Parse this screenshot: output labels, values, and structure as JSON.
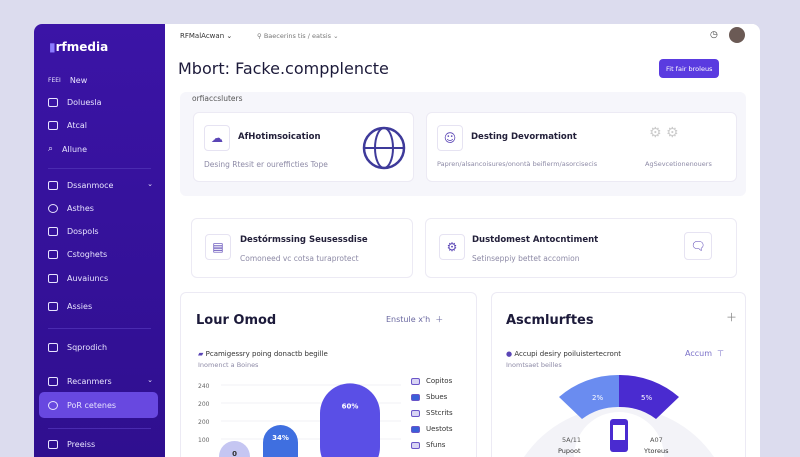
{
  "brand": "rfmedia",
  "sidebar": {
    "items": [
      {
        "label": "New",
        "prefix": "FEEI"
      },
      {
        "label": "Doluesla"
      },
      {
        "label": "Atcal"
      },
      {
        "label": "Allune"
      },
      {
        "label": "Dssanmoce",
        "chevron": true
      },
      {
        "label": "Asthes"
      },
      {
        "label": "Dospols"
      },
      {
        "label": "Cstoghets"
      },
      {
        "label": "Auvaiuncs"
      },
      {
        "label": "Assies"
      },
      {
        "label": "Sqprodich"
      },
      {
        "label": "Recanmers",
        "chevron": true
      },
      {
        "label": "PoR cetenes",
        "active": true
      },
      {
        "label": "Preeiss"
      }
    ]
  },
  "topbar": {
    "workspace": "RFMalAcwan",
    "breadcrumb": "Baecerins tis / eatsis"
  },
  "page": {
    "title": "Mbort: Facke.compplencte",
    "action": "Fit fair broleus"
  },
  "section": {
    "label": "orfiaccsluters",
    "cards": [
      {
        "title": "AfHotimsoication",
        "desc": "Desing Rtesit er ourefficties Tope"
      },
      {
        "title": "Desting Devormationt",
        "desc": "Papren/alsancoisures/onontà beifierm/asorcisecis",
        "side": "AgSevcetionenouers"
      }
    ]
  },
  "cards2": [
    {
      "title": "Destórmssing Seusessdise",
      "desc": "Comoneed vc cotsa turaprotect"
    },
    {
      "title": "Dustdomest Antocntiment",
      "desc": "Setinseppiy bettet accomion"
    }
  ],
  "left_panel": {
    "title": "Lour Omod",
    "action": "Enstule x'h",
    "subtitle": "Pcamigessry poing donactb begille",
    "caption": "Inomenct a Boines",
    "chart_data": {
      "type": "bar",
      "yticks": [
        "240",
        "200",
        "200",
        "100"
      ],
      "bars": [
        {
          "label": "0",
          "value": 50,
          "color": "#c5c6f2"
        },
        {
          "label": "34%",
          "value": 100,
          "color": "#3f6fe0"
        },
        {
          "label": "60%",
          "value": 230,
          "color": "#5a4fe6"
        }
      ],
      "ylim": [
        0,
        250
      ],
      "legend": [
        "Copitos",
        "Sbues",
        "SStcrits",
        "Uestots",
        "Sfuns"
      ]
    }
  },
  "right_panel": {
    "title": "Ascmlurftes",
    "subtitle": "Accupi desiry poiluistertecront",
    "caption": "Inomtsaet beilles",
    "action": "Accum",
    "gauge": {
      "segments": [
        {
          "label": "2%",
          "color": "#6a8cf0"
        },
        {
          "label": "5%",
          "color": "#4a2bd0"
        }
      ],
      "left_value": "5A/11",
      "left_label": "Pupoot",
      "right_value": "A07",
      "right_label": "Ytoreus"
    }
  }
}
